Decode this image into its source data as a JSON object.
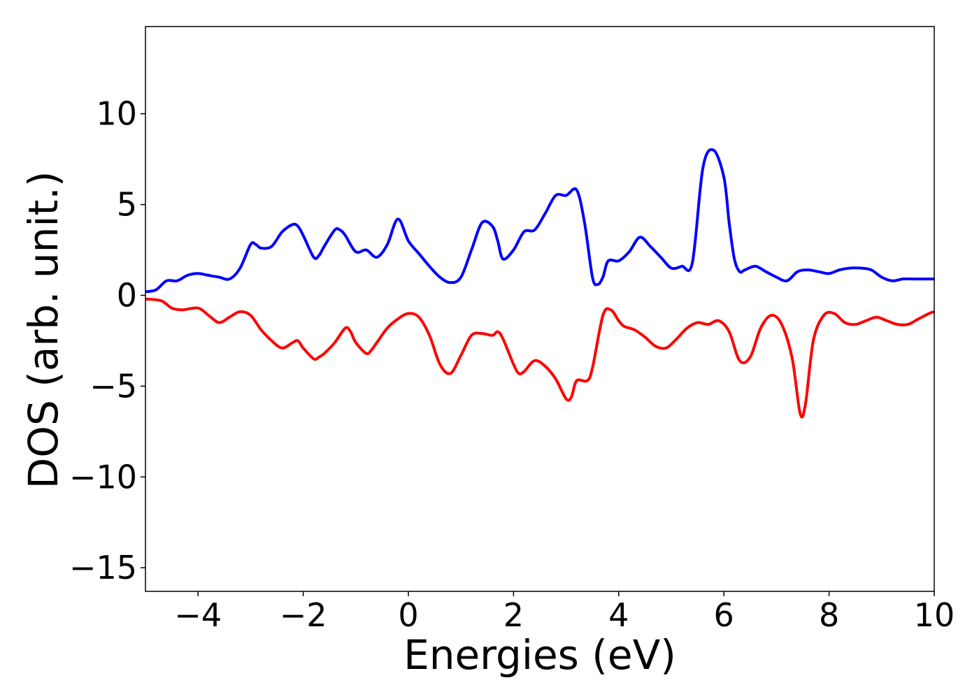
{
  "chart_data": {
    "type": "line",
    "title": "",
    "xlabel": "Energies (eV)",
    "ylabel": "DOS (arb. unit.)",
    "xlim": [
      -5,
      10
    ],
    "ylim": [
      -16.3,
      14.8
    ],
    "xticks": [
      -4,
      -2,
      0,
      2,
      4,
      6,
      8,
      10
    ],
    "xtick_labels": [
      "−4",
      "−2",
      "0",
      "2",
      "4",
      "6",
      "8",
      "10"
    ],
    "yticks": [
      10,
      5,
      0,
      -5,
      -10,
      -15
    ],
    "ytick_labels": [
      "10",
      "5",
      "0",
      "−5",
      "−10",
      "−15"
    ],
    "grid": false,
    "legend": "none",
    "series": [
      {
        "color": "#0000ff",
        "x": [
          -5.0,
          -4.8,
          -4.6,
          -4.4,
          -4.2,
          -4.0,
          -3.8,
          -3.6,
          -3.4,
          -3.2,
          -3.0,
          -2.9,
          -2.8,
          -2.6,
          -2.4,
          -2.2,
          -2.1,
          -2.0,
          -1.8,
          -1.7,
          -1.6,
          -1.4,
          -1.3,
          -1.2,
          -1.0,
          -0.8,
          -0.6,
          -0.4,
          -0.2,
          0.0,
          0.2,
          0.4,
          0.6,
          0.8,
          1.0,
          1.2,
          1.4,
          1.6,
          1.7,
          1.8,
          2.0,
          2.2,
          2.4,
          2.6,
          2.8,
          3.0,
          3.2,
          3.35,
          3.5,
          3.6,
          3.7,
          3.8,
          4.0,
          4.2,
          4.4,
          4.6,
          4.8,
          5.0,
          5.2,
          5.4,
          5.6,
          5.8,
          6.0,
          6.1,
          6.2,
          6.3,
          6.4,
          6.6,
          6.8,
          7.0,
          7.2,
          7.4,
          7.6,
          7.8,
          8.0,
          8.2,
          8.4,
          8.6,
          8.8,
          9.0,
          9.2,
          9.4,
          9.6,
          9.8,
          10.0
        ],
        "y": [
          0.2,
          0.3,
          0.8,
          0.8,
          1.1,
          1.2,
          1.1,
          1.0,
          0.9,
          1.5,
          2.8,
          2.8,
          2.6,
          2.7,
          3.5,
          3.9,
          3.8,
          3.3,
          2.1,
          2.2,
          2.7,
          3.6,
          3.6,
          3.3,
          2.4,
          2.5,
          2.1,
          2.8,
          4.2,
          3.0,
          2.3,
          1.6,
          1.0,
          0.7,
          1.0,
          2.5,
          4.0,
          3.8,
          3.0,
          2.0,
          2.5,
          3.5,
          3.6,
          4.5,
          5.5,
          5.5,
          5.8,
          4.0,
          1.0,
          0.6,
          1.0,
          1.9,
          1.9,
          2.4,
          3.2,
          2.7,
          2.1,
          1.5,
          1.6,
          1.8,
          7.0,
          8.0,
          6.5,
          4.0,
          2.0,
          1.3,
          1.4,
          1.6,
          1.3,
          1.0,
          0.8,
          1.3,
          1.4,
          1.3,
          1.2,
          1.4,
          1.5,
          1.5,
          1.4,
          1.0,
          0.8,
          0.9,
          0.9,
          0.9,
          0.9
        ]
      },
      {
        "color": "#ff0000",
        "x": [
          -5.0,
          -4.7,
          -4.5,
          -4.3,
          -4.0,
          -3.8,
          -3.6,
          -3.4,
          -3.2,
          -3.0,
          -2.8,
          -2.6,
          -2.4,
          -2.2,
          -2.1,
          -2.0,
          -1.8,
          -1.7,
          -1.6,
          -1.4,
          -1.2,
          -1.1,
          -1.0,
          -0.8,
          -0.7,
          -0.6,
          -0.4,
          -0.2,
          0.0,
          0.2,
          0.4,
          0.6,
          0.8,
          1.0,
          1.2,
          1.4,
          1.6,
          1.7,
          1.8,
          2.0,
          2.1,
          2.2,
          2.4,
          2.6,
          2.8,
          3.0,
          3.1,
          3.2,
          3.4,
          3.5,
          3.7,
          3.85,
          4.0,
          4.1,
          4.3,
          4.5,
          4.7,
          4.9,
          5.1,
          5.3,
          5.5,
          5.7,
          5.9,
          6.1,
          6.3,
          6.5,
          6.7,
          6.9,
          7.1,
          7.3,
          7.45,
          7.55,
          7.7,
          7.9,
          8.1,
          8.3,
          8.5,
          8.7,
          8.9,
          9.1,
          9.3,
          9.5,
          9.7,
          9.9,
          10.0
        ],
        "y": [
          -0.2,
          -0.3,
          -0.7,
          -0.8,
          -0.7,
          -1.1,
          -1.5,
          -1.2,
          -0.9,
          -1.1,
          -1.9,
          -2.5,
          -2.9,
          -2.6,
          -2.5,
          -2.9,
          -3.5,
          -3.4,
          -3.2,
          -2.6,
          -1.8,
          -2.0,
          -2.6,
          -3.2,
          -3.0,
          -2.6,
          -1.8,
          -1.3,
          -1.0,
          -1.2,
          -2.2,
          -3.8,
          -4.3,
          -3.3,
          -2.2,
          -2.1,
          -2.2,
          -2.0,
          -2.4,
          -3.8,
          -4.3,
          -4.2,
          -3.6,
          -3.9,
          -4.6,
          -5.7,
          -5.6,
          -4.7,
          -4.7,
          -4.0,
          -1.1,
          -0.8,
          -1.4,
          -1.7,
          -1.9,
          -2.3,
          -2.8,
          -2.9,
          -2.4,
          -1.8,
          -1.5,
          -1.6,
          -1.4,
          -2.0,
          -3.6,
          -3.4,
          -1.8,
          -1.1,
          -1.6,
          -3.5,
          -6.5,
          -6.0,
          -2.5,
          -1.1,
          -1.0,
          -1.5,
          -1.6,
          -1.4,
          -1.2,
          -1.4,
          -1.6,
          -1.6,
          -1.3,
          -1.0,
          -0.9
        ]
      }
    ]
  }
}
